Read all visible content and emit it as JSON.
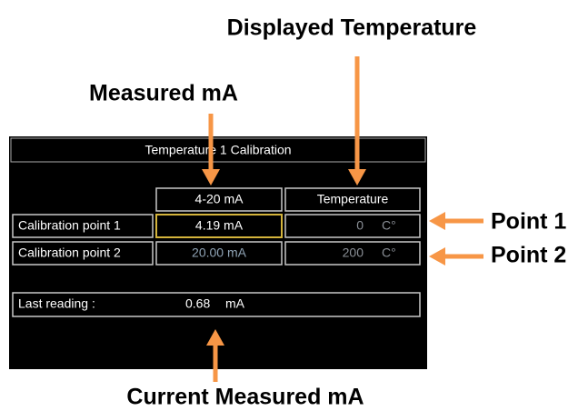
{
  "annotations": {
    "displayed_temperature": "Displayed Temperature",
    "measured_ma": "Measured mA",
    "point_1": "Point 1",
    "point_2": "Point 2",
    "current_measured_ma": "Current Measured mA"
  },
  "screen": {
    "title": "Temperature 1 Calibration",
    "table": {
      "header": [
        "4-20 mA",
        "Temperature"
      ],
      "rows": [
        [
          "Calibration point 1",
          "4.19 mA",
          "0",
          "C°"
        ],
        [
          "Calibration point 2",
          "20.00 mA",
          "200",
          "C°"
        ]
      ]
    },
    "last_reading": {
      "label": "Last reading :",
      "value": "0.68",
      "unit": "mA"
    }
  }
}
